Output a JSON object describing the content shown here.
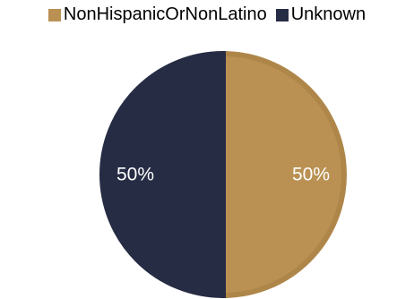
{
  "chart_data": {
    "type": "pie",
    "title": "",
    "slices": [
      {
        "label": "NonHispanicOrNonLatino",
        "value": 50,
        "display": "50%",
        "color": "#BA9152",
        "edge_color": "#AE864A"
      },
      {
        "label": "Unknown",
        "value": 50,
        "display": "50%",
        "color": "#262C44",
        "edge_color": "#262C44"
      }
    ],
    "legend_position": "top",
    "data_label_color": "#FFFFFF"
  }
}
